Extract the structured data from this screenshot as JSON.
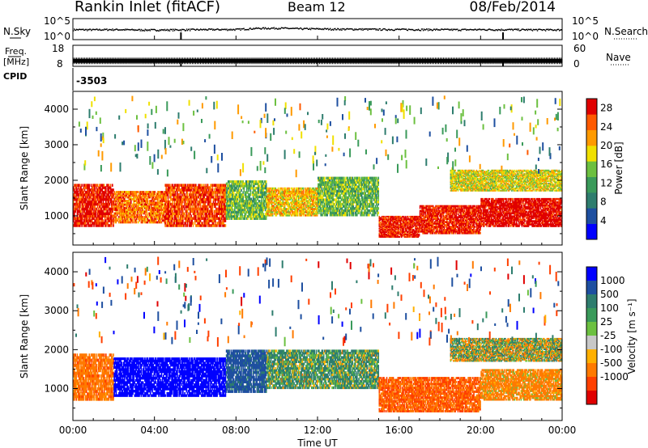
{
  "header": {
    "station": "Rankin Inlet (fitACF)",
    "beam": "Beam 12",
    "date": "08/Feb/2014"
  },
  "noise_panel": {
    "left_label": "N.Sky",
    "right_label": "N.Search",
    "left_ticks": [
      "10^5",
      "10^0"
    ],
    "right_ticks": [
      "10^5",
      "10^0"
    ]
  },
  "freq_panel": {
    "left_label_1": "Freq.",
    "left_label_2": "[MHz]",
    "right_label": "Nave",
    "left_ticks": [
      "18",
      "8"
    ],
    "right_ticks": [
      "60",
      "0"
    ]
  },
  "cpid": {
    "label": "CPID",
    "value": "-3503"
  },
  "colors": {
    "power_scale": [
      "#0000ff",
      "#1e4fa0",
      "#2e7d6e",
      "#3a9a5a",
      "#6cc040",
      "#f0e000",
      "#ff9a00",
      "#ff5a00",
      "#e00000"
    ],
    "velocity_scale": [
      "#0000ff",
      "#1e4fa0",
      "#2e7d6e",
      "#3a9a5a",
      "#6cc040",
      "#c8c8c8",
      "#ffb000",
      "#ff7a00",
      "#ff4000",
      "#e00000"
    ]
  },
  "chart_data": [
    {
      "type": "scatter",
      "name": "noise",
      "xlabel": "",
      "ylabel": "N.Sky",
      "x_range_hours": [
        0,
        24
      ],
      "yscale": "log",
      "ylim": [
        1,
        100000
      ],
      "series": [
        {
          "x": [
            0,
            1,
            2,
            3,
            4,
            5,
            6,
            7,
            8,
            9,
            10,
            11,
            12,
            13,
            14,
            15,
            16,
            17,
            18,
            19,
            20,
            21,
            22,
            23,
            24
          ],
          "y": [
            300,
            280,
            320,
            260,
            250,
            270,
            300,
            320,
            330,
            600,
            700,
            500,
            450,
            400,
            380,
            350,
            330,
            320,
            300,
            290,
            310,
            300,
            290,
            280,
            270
          ]
        }
      ]
    },
    {
      "type": "scatter",
      "name": "frequency",
      "ylabel": "Freq. [MHz]",
      "ylim": [
        8,
        18
      ],
      "nave_ylim": [
        0,
        60
      ],
      "series": [
        {
          "x": [
            0,
            24
          ],
          "y": [
            10.6,
            10.6
          ]
        }
      ]
    },
    {
      "type": "heatmap",
      "name": "power",
      "xlabel": "Time UT",
      "ylabel": "Slant Range [km]",
      "x_ticks": [
        "00:00",
        "04:00",
        "08:00",
        "12:00",
        "16:00",
        "20:00",
        "00:00"
      ],
      "x_range_hours": [
        0,
        24
      ],
      "y_ticks": [
        1000,
        2000,
        3000,
        4000
      ],
      "ylim": [
        180,
        4500
      ],
      "colorbar": {
        "label": "Power [dB]",
        "ticks": [
          4,
          8,
          12,
          16,
          20,
          24,
          28
        ],
        "range": [
          0,
          30
        ]
      },
      "bands": [
        {
          "t0": 0.0,
          "t1": 2.0,
          "r0": 700,
          "r1": 1900,
          "level": 28
        },
        {
          "t0": 2.0,
          "t1": 4.5,
          "r0": 800,
          "r1": 1700,
          "level": 24
        },
        {
          "t0": 4.5,
          "t1": 7.5,
          "r0": 700,
          "r1": 1900,
          "level": 26
        },
        {
          "t0": 7.5,
          "t1": 9.5,
          "r0": 900,
          "r1": 2000,
          "level": 14
        },
        {
          "t0": 9.5,
          "t1": 12.0,
          "r0": 1000,
          "r1": 1800,
          "level": 20
        },
        {
          "t0": 12.0,
          "t1": 15.0,
          "r0": 1000,
          "r1": 2100,
          "level": 14
        },
        {
          "t0": 15.0,
          "t1": 17.0,
          "r0": 400,
          "r1": 1000,
          "level": 28
        },
        {
          "t0": 17.0,
          "t1": 20.0,
          "r0": 500,
          "r1": 1300,
          "level": 28
        },
        {
          "t0": 20.0,
          "t1": 24.0,
          "r0": 700,
          "r1": 1500,
          "level": 30
        },
        {
          "t0": 18.5,
          "t1": 24.0,
          "r0": 1700,
          "r1": 2300,
          "level": 18
        }
      ]
    },
    {
      "type": "heatmap",
      "name": "velocity",
      "xlabel": "Time UT",
      "ylabel": "Slant Range [km]",
      "x_ticks": [
        "00:00",
        "04:00",
        "08:00",
        "12:00",
        "16:00",
        "20:00",
        "00:00"
      ],
      "x_range_hours": [
        0,
        24
      ],
      "y_ticks": [
        1000,
        2000,
        3000,
        4000
      ],
      "ylim": [
        180,
        4500
      ],
      "colorbar": {
        "label": "Velocity [m s⁻¹]",
        "ticks": [
          1000,
          500,
          100,
          25,
          -25,
          -100,
          -500,
          -1000
        ]
      },
      "bands": [
        {
          "t0": 0.0,
          "t1": 2.0,
          "r0": 700,
          "r1": 1900,
          "velocity": -200
        },
        {
          "t0": 2.0,
          "t1": 7.5,
          "r0": 800,
          "r1": 1800,
          "velocity": 900
        },
        {
          "t0": 7.5,
          "t1": 9.5,
          "r0": 900,
          "r1": 2000,
          "velocity": 400
        },
        {
          "t0": 9.5,
          "t1": 15.0,
          "r0": 1000,
          "r1": 2000,
          "velocity": 80
        },
        {
          "t0": 15.0,
          "t1": 20.0,
          "r0": 400,
          "r1": 1300,
          "velocity": -300
        },
        {
          "t0": 20.0,
          "t1": 24.0,
          "r0": 700,
          "r1": 1500,
          "velocity": -150
        },
        {
          "t0": 18.5,
          "t1": 24.0,
          "r0": 1700,
          "r1": 2300,
          "velocity": 0
        }
      ]
    }
  ],
  "footer": {
    "time_label": "Time UT"
  }
}
